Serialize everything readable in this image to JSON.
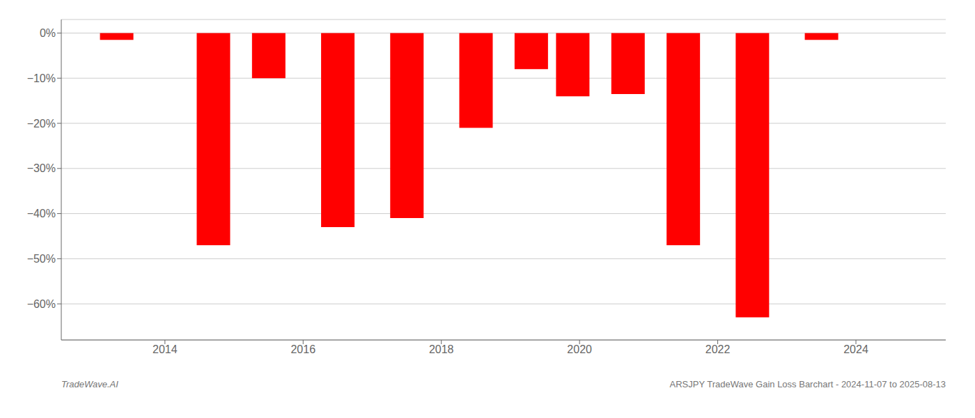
{
  "chart_data": {
    "type": "bar",
    "x": [
      2013.3,
      2014.7,
      2015.5,
      2016.5,
      2017.5,
      2018.5,
      2019.3,
      2019.9,
      2020.7,
      2021.5,
      2022.5,
      2023.5
    ],
    "values": [
      -1.5,
      -47.0,
      -10.0,
      -43.0,
      -41.0,
      -21.0,
      -8.0,
      -14.0,
      -13.5,
      -47.0,
      -63.0,
      -1.5
    ],
    "color": "#ff0000",
    "xlim": [
      2012.5,
      2025.3
    ],
    "xticks": [
      2014,
      2016,
      2018,
      2020,
      2022,
      2024
    ],
    "ylim": [
      -68,
      3
    ],
    "yticks": [
      {
        "value": 0,
        "label": "0%"
      },
      {
        "value": -10,
        "label": "−10%"
      },
      {
        "value": -20,
        "label": "−20%"
      },
      {
        "value": -30,
        "label": "−30%"
      },
      {
        "value": -40,
        "label": "−40%"
      },
      {
        "value": -50,
        "label": "−50%"
      },
      {
        "value": -60,
        "label": "−60%"
      }
    ],
    "grid": true,
    "annotations": [
      "TradeWave.AI",
      "ARSJPY TradeWave Gain Loss Barchart - 2024-11-07 to 2025-08-13"
    ]
  }
}
